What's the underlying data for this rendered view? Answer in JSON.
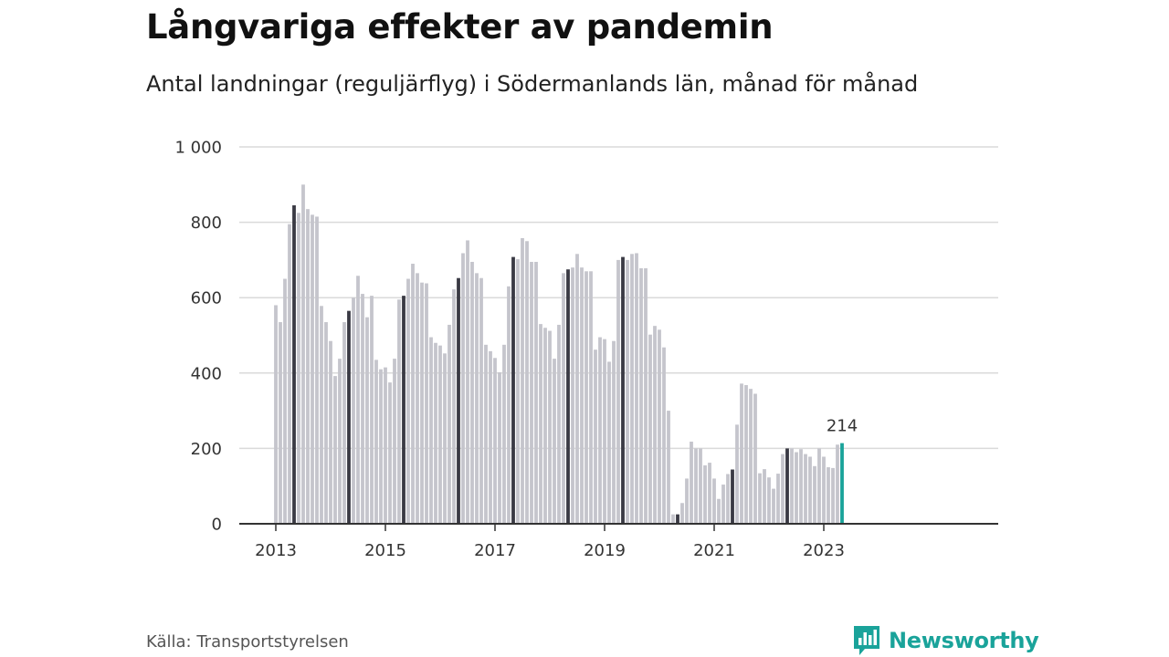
{
  "title": "Långvariga effekter av pandemin",
  "subtitle": "Antal landningar (reguljärflyg) i Södermanlands län, månad för månad",
  "source": "Källa: Transportstyrelsen",
  "brand": "Newsworthy",
  "colors": {
    "bar": "#c5c5cc",
    "may_bar": "#3a3a44",
    "latest_bar": "#1aa39a",
    "grid": "#dadada",
    "axis": "#333333",
    "brand": "#1aa39a"
  },
  "chart_data": {
    "type": "bar",
    "x_start": "2013-01",
    "x_end": "2023-05",
    "x_ticks": [
      "2013",
      "2015",
      "2017",
      "2019",
      "2021",
      "2023"
    ],
    "y_ticks": [
      "0",
      "200",
      "400",
      "600",
      "800",
      "1 000"
    ],
    "ylim": [
      0,
      1000
    ],
    "grid": true,
    "highlight_month": "May",
    "annotation": {
      "month": "2023-05",
      "label": "214"
    },
    "values": [
      580,
      535,
      650,
      795,
      845,
      825,
      900,
      835,
      820,
      815,
      578,
      535,
      485,
      392,
      438,
      535,
      565,
      600,
      658,
      610,
      548,
      605,
      435,
      410,
      415,
      375,
      438,
      595,
      605,
      650,
      690,
      665,
      640,
      638,
      495,
      480,
      473,
      452,
      528,
      622,
      652,
      718,
      752,
      695,
      665,
      652,
      475,
      458,
      440,
      402,
      475,
      630,
      708,
      702,
      758,
      750,
      695,
      695,
      530,
      520,
      512,
      438,
      528,
      665,
      675,
      680,
      716,
      680,
      670,
      670,
      462,
      495,
      490,
      430,
      485,
      700,
      708,
      700,
      716,
      718,
      678,
      678,
      502,
      525,
      515,
      468,
      300,
      25,
      25,
      55,
      120,
      218,
      200,
      200,
      155,
      162,
      120,
      66,
      104,
      132,
      144,
      263,
      372,
      368,
      358,
      345,
      134,
      145,
      123,
      93,
      133,
      185,
      200,
      200,
      190,
      198,
      185,
      178,
      153,
      200,
      178,
      150,
      148,
      210,
      214
    ]
  }
}
